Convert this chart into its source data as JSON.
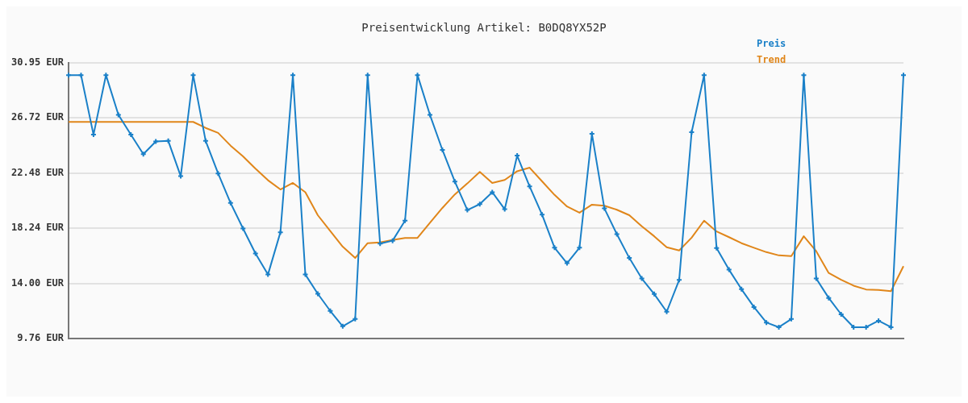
{
  "chart_data": {
    "type": "line",
    "title": "Preisentwicklung Artikel: B0DQ8YX52P",
    "categories": [
      null,
      null,
      null,
      null,
      null,
      null,
      null,
      null,
      null,
      null,
      null,
      null,
      null,
      null,
      null,
      null,
      null,
      null,
      null,
      null,
      null,
      null,
      null,
      null,
      null,
      null,
      null,
      null,
      null,
      null,
      null,
      null,
      null,
      null,
      null,
      null,
      null,
      null,
      null,
      null,
      null,
      null,
      null,
      null,
      null,
      null,
      null,
      null,
      null,
      null,
      null,
      null,
      null,
      null,
      null,
      null,
      null,
      null,
      null,
      null,
      null,
      null,
      null,
      null,
      null,
      null,
      null,
      null
    ],
    "series": [
      {
        "name": "Preis",
        "color": "#1a80c8",
        "marker": "cross",
        "values": [
          30.01,
          30.01,
          25.43,
          30.01,
          26.95,
          25.43,
          23.93,
          24.91,
          24.95,
          22.24,
          30.01,
          24.95,
          22.45,
          20.18,
          18.22,
          16.3,
          14.68,
          17.93,
          30.01,
          14.68,
          13.2,
          11.88,
          10.7,
          11.26,
          30.01,
          17.05,
          17.28,
          18.82,
          30.01,
          26.95,
          24.26,
          21.82,
          19.64,
          20.09,
          21.01,
          19.7,
          23.82,
          21.45,
          19.28,
          16.74,
          15.55,
          16.74,
          25.49,
          19.76,
          17.78,
          15.95,
          14.37,
          13.18,
          11.82,
          14.26,
          25.62,
          30.01,
          16.72,
          15.05,
          13.55,
          12.18,
          10.99,
          10.63,
          11.26,
          30.01,
          14.37,
          12.88,
          11.62,
          10.63,
          10.63,
          11.13,
          10.63,
          30.01
        ]
      },
      {
        "name": "Trend",
        "color": "#e0861a",
        "marker": "none",
        "values": [
          26.41,
          26.41,
          26.41,
          26.41,
          26.41,
          26.41,
          26.41,
          26.41,
          26.41,
          26.41,
          26.41,
          25.95,
          25.57,
          24.59,
          23.76,
          22.82,
          21.93,
          21.22,
          21.72,
          21.01,
          19.24,
          18.03,
          16.82,
          15.95,
          17.09,
          17.15,
          17.34,
          17.49,
          17.49,
          18.66,
          19.8,
          20.84,
          21.68,
          22.57,
          21.72,
          21.95,
          22.62,
          22.89,
          21.84,
          20.8,
          19.91,
          19.43,
          20.05,
          19.97,
          19.66,
          19.24,
          18.39,
          17.62,
          16.78,
          16.53,
          17.51,
          18.82,
          17.99,
          17.55,
          17.09,
          16.74,
          16.4,
          16.15,
          16.09,
          17.62,
          16.47,
          14.8,
          14.28,
          13.82,
          13.53,
          13.49,
          13.4,
          15.32
        ]
      }
    ],
    "ylim": [
      9.76,
      30.95
    ],
    "yticks": [
      {
        "value": 9.76,
        "label": "9.76 EUR"
      },
      {
        "value": 14.0,
        "label": "14.00 EUR"
      },
      {
        "value": 18.24,
        "label": "18.24 EUR"
      },
      {
        "value": 22.48,
        "label": "22.48 EUR"
      },
      {
        "value": 26.72,
        "label": "26.72 EUR"
      },
      {
        "value": 30.95,
        "label": "30.95 EUR"
      }
    ],
    "grid": "y",
    "legend": "top right",
    "tick_labels": "y",
    "line_style": "solid"
  }
}
